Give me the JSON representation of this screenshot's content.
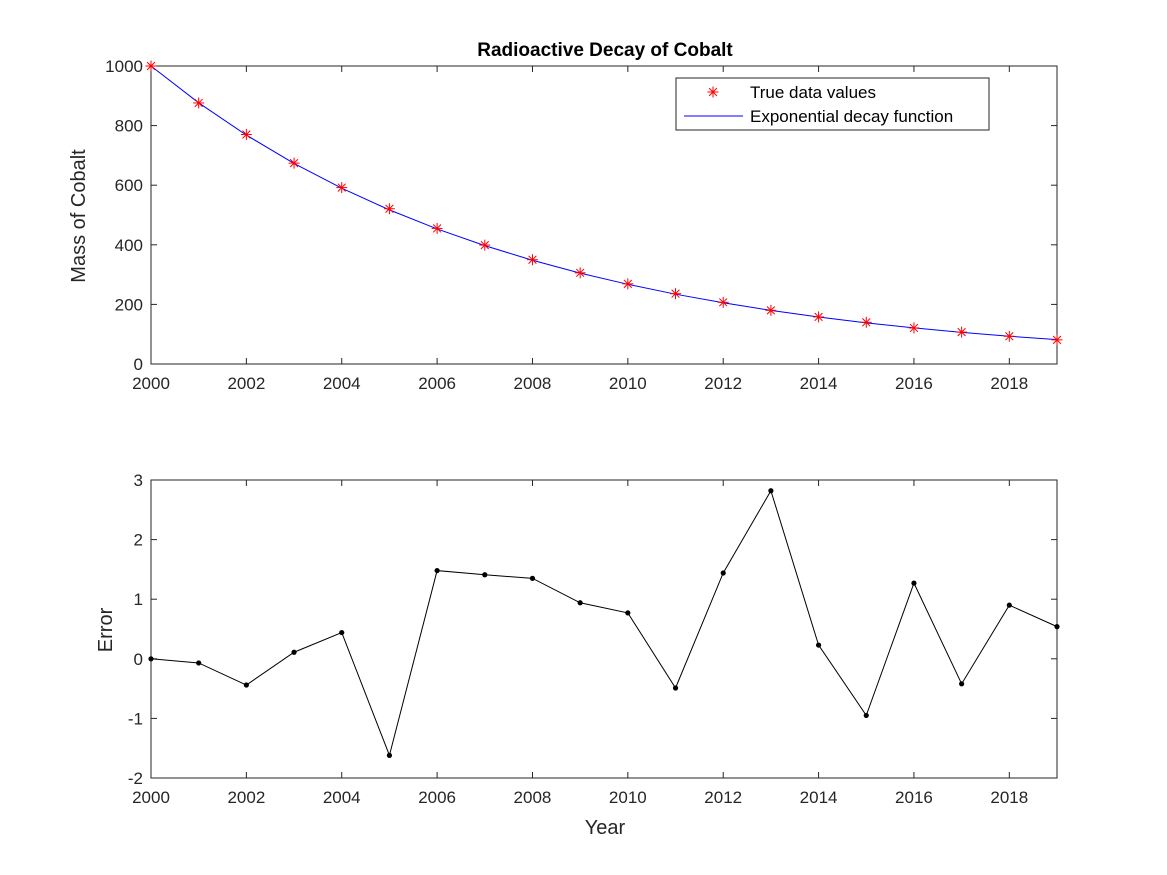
{
  "chart_data": [
    {
      "type": "line",
      "title": "Radioactive Decay of Cobalt",
      "xlabel": "",
      "ylabel": "Mass of Cobalt",
      "xlim": [
        2000,
        2019
      ],
      "ylim": [
        0,
        1000
      ],
      "xticks": [
        2000,
        2002,
        2004,
        2006,
        2008,
        2010,
        2012,
        2014,
        2016,
        2018
      ],
      "yticks": [
        0,
        200,
        400,
        600,
        800,
        1000
      ],
      "grid": false,
      "legend_position": "top-right",
      "x": [
        2000,
        2001,
        2002,
        2003,
        2004,
        2005,
        2006,
        2007,
        2008,
        2009,
        2010,
        2011,
        2012,
        2013,
        2014,
        2015,
        2016,
        2017,
        2018,
        2019
      ],
      "series": [
        {
          "name": "True data values",
          "style": "markers",
          "marker": "asterisk",
          "color": "#ff0000",
          "values": [
            1000,
            876,
            770,
            674,
            592,
            521,
            455,
            399,
            350,
            306,
            269,
            236,
            207,
            180,
            158,
            140,
            121,
            107,
            93,
            81
          ]
        },
        {
          "name": "Exponential decay function",
          "style": "line",
          "color": "#0000ff",
          "values": [
            1000,
            876.4,
            768.1,
            673.1,
            590.0,
            517.1,
            453.2,
            397.2,
            348.1,
            305.1,
            267.4,
            234.3,
            205.4,
            180.0,
            157.7,
            138.2,
            121.1,
            106.2,
            93.1,
            81.6
          ]
        }
      ]
    },
    {
      "type": "line",
      "title": "",
      "xlabel": "Year",
      "ylabel": "Error",
      "xlim": [
        2000,
        2019
      ],
      "ylim": [
        -2,
        3
      ],
      "xticks": [
        2000,
        2002,
        2004,
        2006,
        2008,
        2010,
        2012,
        2014,
        2016,
        2018
      ],
      "yticks": [
        -2,
        -1,
        0,
        1,
        2,
        3
      ],
      "grid": false,
      "x": [
        2000,
        2001,
        2002,
        2003,
        2004,
        2005,
        2006,
        2007,
        2008,
        2009,
        2010,
        2011,
        2012,
        2013,
        2014,
        2015,
        2016,
        2017,
        2018,
        2019
      ],
      "series": [
        {
          "style": "line-markers",
          "marker": "dot",
          "color": "#000000",
          "values": [
            0,
            -0.07,
            -0.44,
            0.11,
            0.44,
            -1.62,
            1.48,
            1.41,
            1.35,
            0.94,
            0.77,
            -0.49,
            1.44,
            2.82,
            0.23,
            -0.95,
            1.27,
            -0.42,
            0.9,
            0.54
          ]
        }
      ]
    }
  ]
}
